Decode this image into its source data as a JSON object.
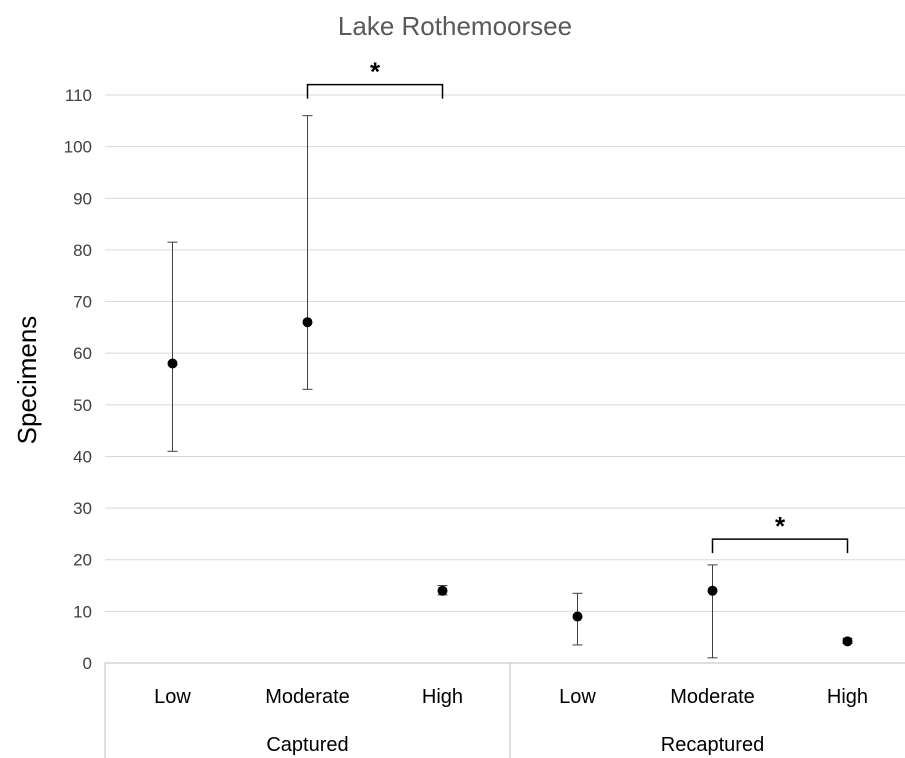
{
  "chart_data": {
    "type": "scatter",
    "title": "Lake Rothemoorsee",
    "ylabel": "Specimens",
    "xlabel": "",
    "ylim": [
      0,
      110
    ],
    "yticks": [
      0,
      10,
      20,
      30,
      40,
      50,
      60,
      70,
      80,
      90,
      100,
      110
    ],
    "grid": true,
    "groups": [
      {
        "name": "Captured",
        "points": [
          {
            "category": "Low",
            "value": 58,
            "error_low": 41,
            "error_high": 81.5
          },
          {
            "category": "Moderate",
            "value": 66,
            "error_low": 53,
            "error_high": 106
          },
          {
            "category": "High",
            "value": 14,
            "error_low": 13.2,
            "error_high": 15
          }
        ]
      },
      {
        "name": "Recaptured",
        "points": [
          {
            "category": "Low",
            "value": 9,
            "error_low": 3.5,
            "error_high": 13.5
          },
          {
            "category": "Moderate",
            "value": 14,
            "error_low": 1,
            "error_high": 19
          },
          {
            "category": "High",
            "value": 4.2,
            "error_low": 3.8,
            "error_high": 4.8
          }
        ]
      }
    ],
    "annotations": [
      {
        "text": "*",
        "group": 0,
        "from": 1,
        "to": 2,
        "y": 112
      },
      {
        "text": "*",
        "group": 1,
        "from": 1,
        "to": 2,
        "y": 24
      }
    ]
  }
}
